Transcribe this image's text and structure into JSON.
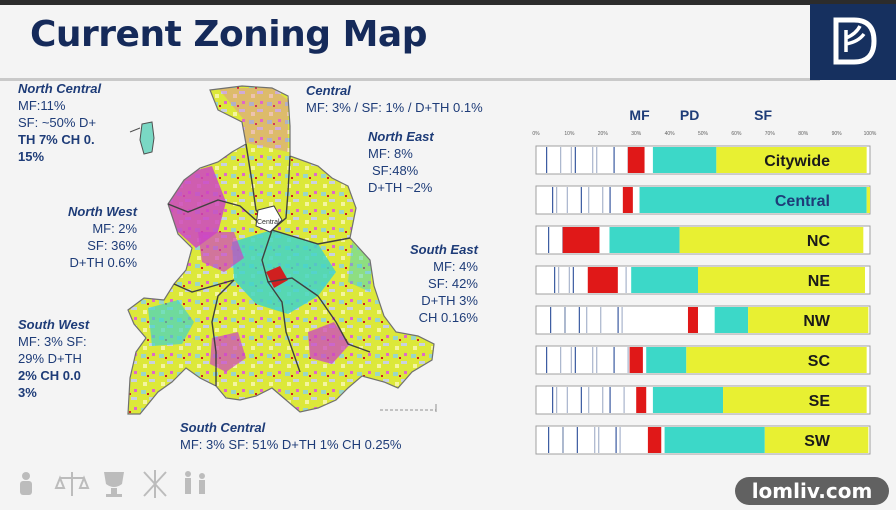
{
  "title": "Current Zoning Map",
  "colors": {
    "title": "#152a5a",
    "label": "#1e3c78",
    "mf": "#e01818",
    "pd": "#3cd8c8",
    "sf": "#e8f032",
    "commercial": "#d040c8",
    "logo_bg": "#16305f"
  },
  "regions": {
    "north_central": {
      "name": "North Central",
      "line1": "MF:11%",
      "line2": "SF: ~50%  D+",
      "line3": "TH 7%  CH 0.",
      "line4": "15%"
    },
    "central": {
      "name": "Central",
      "line1": "MF: 3% / SF: 1% / D+TH 0.1%"
    },
    "north_east": {
      "name": "North East",
      "line1": "MF: 8%",
      "line2": "SF:48%",
      "line3": "D+TH ~2%"
    },
    "north_west": {
      "name": "North West",
      "line1": "MF: 2%",
      "line2": "SF: 36%",
      "line3": "D+TH 0.6%"
    },
    "south_east": {
      "name": "South East",
      "line1": "MF: 4%",
      "line2": "SF: 42%",
      "line3": "D+TH 3%",
      "line4": "CH 0.16%"
    },
    "south_west": {
      "name": "South West",
      "line1": "MF: 3%  SF:",
      "line2": "29%  D+TH",
      "line3": "2%  CH 0.0",
      "line4": "3%"
    },
    "south_central": {
      "name": "South Central",
      "line1": "MF: 3% SF: 51% D+TH 1% CH 0.25%"
    }
  },
  "map_label": "Central",
  "watermark": "lomliv.com",
  "chart_data": {
    "type": "bar",
    "orientation": "horizontal",
    "stacked": true,
    "x_ticks": [
      "0%",
      "10%",
      "20%",
      "30%",
      "40%",
      "50%",
      "60%",
      "70%",
      "80%",
      "90%",
      "100%"
    ],
    "xlim": [
      0,
      100
    ],
    "column_headers": [
      {
        "label": "MF",
        "x": 31
      },
      {
        "label": "PD",
        "x": 46
      },
      {
        "label": "SF",
        "x": 68
      }
    ],
    "categories": [
      "Citywide",
      "Central",
      "NC",
      "NE",
      "NW",
      "SC",
      "SE",
      "SW"
    ],
    "series": [
      {
        "key": "mf",
        "starts": [
          27.5,
          26,
          8,
          15.5,
          45.5,
          28,
          30,
          33.5
        ],
        "widths": [
          5,
          3,
          11,
          9,
          3,
          4,
          3,
          4
        ]
      },
      {
        "key": "pd",
        "starts": [
          35,
          31,
          22,
          28.5,
          53.5,
          33,
          35,
          38.5
        ],
        "widths": [
          19,
          68,
          21,
          20,
          10,
          12,
          21,
          30
        ]
      },
      {
        "key": "sf",
        "starts": [
          54,
          99,
          43,
          48.5,
          63.5,
          45,
          56,
          68.5
        ],
        "widths": [
          45,
          1,
          55,
          50,
          36,
          54,
          43,
          31
        ]
      }
    ],
    "legend": "none",
    "grid": false
  }
}
